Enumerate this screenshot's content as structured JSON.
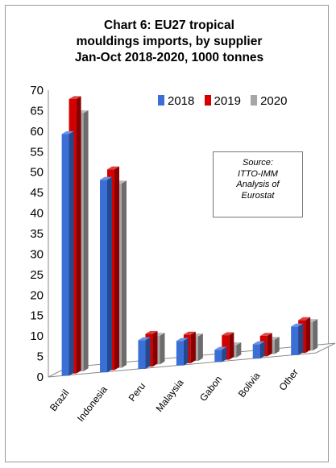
{
  "title_lines": [
    "Chart 6: EU27 tropical",
    "mouldings imports, by supplier",
    "Jan-Oct 2018-2020, 1000 tonnes"
  ],
  "source_lines": [
    "Source:",
    "ITTO-IMM",
    "Analysis of",
    "Eurostat"
  ],
  "colors": {
    "2018": "#3a6fd8",
    "2019": "#d40000",
    "2020": "#a6a6a6"
  },
  "chart_data": {
    "type": "bar",
    "title": "Chart 6: EU27 tropical mouldings imports, by supplier Jan-Oct 2018-2020, 1000 tonnes",
    "categories": [
      "Brazil",
      "Indonesia",
      "Peru",
      "Malaysia",
      "Gabon",
      "Bolivia",
      "Other"
    ],
    "series": [
      {
        "name": "2018",
        "values": [
          59,
          47,
          7,
          6,
          3,
          3.5,
          7
        ]
      },
      {
        "name": "2019",
        "values": [
          67,
          49,
          8,
          7,
          6,
          5,
          8
        ]
      },
      {
        "name": "2020",
        "values": [
          63,
          45,
          7,
          6,
          3,
          3.5,
          7
        ]
      }
    ],
    "ylim": [
      0,
      70
    ],
    "yticks": [
      0,
      5,
      10,
      15,
      20,
      25,
      30,
      35,
      40,
      45,
      50,
      55,
      60,
      65,
      70
    ],
    "legend": "top-right",
    "style": "3d-clustered-column",
    "grid": false
  }
}
